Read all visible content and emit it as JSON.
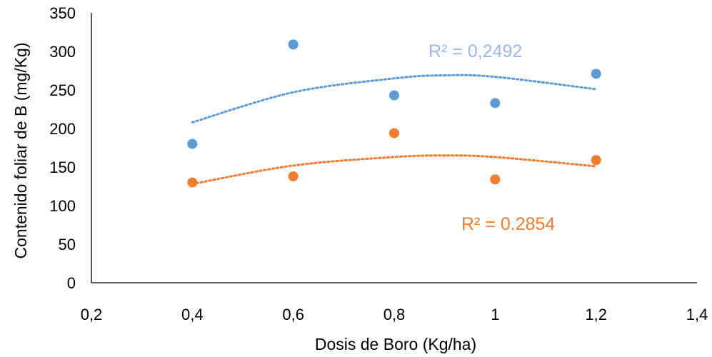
{
  "chart_data": {
    "type": "scatter",
    "title": "",
    "xlabel": "Dosis de Boro (Kg/ha)",
    "ylabel": "Contenido foliar de B (mg/Kg)",
    "xlim": [
      0.2,
      1.4
    ],
    "ylim": [
      0,
      350
    ],
    "x_ticks": [
      "0,2",
      "0,4",
      "0,6",
      "0,8",
      "1",
      "1,2",
      "1,4"
    ],
    "y_ticks": [
      "0",
      "50",
      "100",
      "150",
      "200",
      "250",
      "300",
      "350"
    ],
    "grid": false,
    "legend": "none",
    "series": [
      {
        "color": "#5B9BD5",
        "points": [
          {
            "x": 0.4,
            "y": 180
          },
          {
            "x": 0.6,
            "y": 309
          },
          {
            "x": 0.8,
            "y": 243
          },
          {
            "x": 1.0,
            "y": 233
          },
          {
            "x": 1.2,
            "y": 271
          }
        ],
        "trendline": {
          "type": "polynomial",
          "x": [
            0.4,
            0.6,
            0.8,
            0.9,
            1.0,
            1.2
          ],
          "y": [
            208,
            247,
            265,
            269,
            267,
            251
          ]
        },
        "r2_label": "R² = 0,2492"
      },
      {
        "color": "#ED7D31",
        "points": [
          {
            "x": 0.4,
            "y": 130
          },
          {
            "x": 0.6,
            "y": 138
          },
          {
            "x": 0.8,
            "y": 194
          },
          {
            "x": 1.0,
            "y": 134
          },
          {
            "x": 1.2,
            "y": 159
          }
        ],
        "trendline": {
          "type": "polynomial",
          "x": [
            0.4,
            0.6,
            0.8,
            0.9,
            1.0,
            1.2
          ],
          "y": [
            128,
            152,
            163,
            165,
            163,
            151
          ]
        },
        "r2_label": "R² = 0.2854"
      }
    ]
  }
}
